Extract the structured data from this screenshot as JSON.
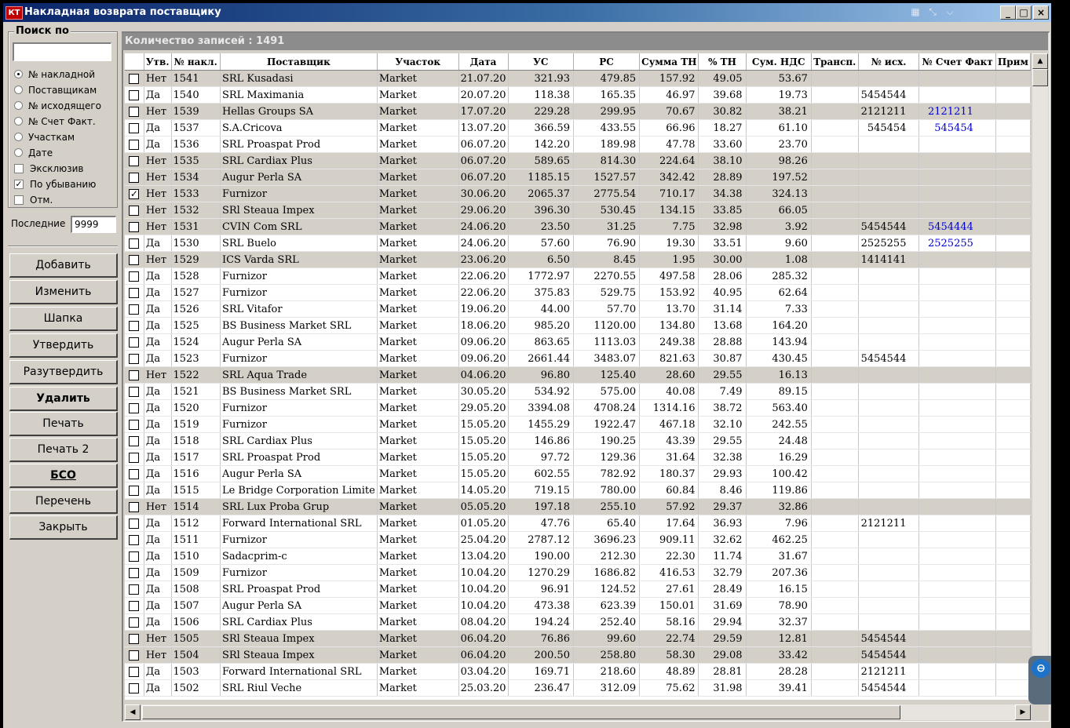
{
  "window": {
    "title": "Накладная возврата поставщику",
    "app_icon": "КТ",
    "buttons": {
      "minimize": "_",
      "maximize": "□",
      "close": "×"
    },
    "ext_icons": [
      "grid-icon",
      "pin-icon",
      "chevron-down-icon"
    ]
  },
  "search": {
    "group_label": "Поиск по",
    "input_value": "",
    "options": [
      {
        "label": "№ накладной",
        "kind": "radio",
        "checked": true
      },
      {
        "label": "Поставщикам",
        "kind": "radio",
        "checked": false
      },
      {
        "label": "№ исходящего",
        "kind": "radio",
        "checked": false
      },
      {
        "label": "№ Счет Факт.",
        "kind": "radio",
        "checked": false
      },
      {
        "label": "Участкам",
        "kind": "radio",
        "checked": false
      },
      {
        "label": "Дате",
        "kind": "radio",
        "checked": false
      },
      {
        "label": "Эксклюзив",
        "kind": "check",
        "checked": false
      },
      {
        "label": "По убыванию",
        "kind": "check",
        "checked": true
      },
      {
        "label": "Отм.",
        "kind": "check",
        "checked": false
      }
    ],
    "last_label": "Последние",
    "last_value": "9999"
  },
  "actions": [
    "Добавить",
    "Изменить",
    "Шапка",
    "Утвердить",
    "Разутвердить",
    "Удалить",
    "Печать",
    "Печать 2",
    "БСО",
    "Перечень",
    "Закрыть"
  ],
  "grid": {
    "count_text": "Количество записей : 1491",
    "columns": [
      "",
      "Утв.",
      "№ накл.",
      "Поставщик",
      "Участок",
      "Дата",
      "УС",
      "РС",
      "Сумма ТН",
      "% ТН",
      "Сум. НДС",
      "Трансп.",
      "№ исх.",
      "№ Счет Факт",
      "Прим"
    ],
    "rows": [
      [
        "",
        "Нет",
        "1541",
        "SRL Kusadasi",
        "Market",
        "21.07.20",
        "321.93",
        "479.85",
        "157.92",
        "49.05",
        "53.67",
        "",
        "",
        ""
      ],
      [
        "",
        "Да",
        "1540",
        "SRL Maximania",
        "Market",
        "20.07.20",
        "118.38",
        "165.35",
        "46.97",
        "39.68",
        "19.73",
        "",
        "5454544",
        ""
      ],
      [
        "",
        "Нет",
        "1539",
        "Hellas Groups SA",
        "Market",
        "17.07.20",
        "229.28",
        "299.95",
        "70.67",
        "30.82",
        "38.21",
        "",
        "2121211",
        "2121211"
      ],
      [
        "",
        "Да",
        "1537",
        "S.A.Cricova",
        "Market",
        "13.07.20",
        "366.59",
        "433.55",
        "66.96",
        "18.27",
        "61.10",
        "",
        "545454",
        "545454"
      ],
      [
        "",
        "Да",
        "1536",
        "SRL Proaspat Prod",
        "Market",
        "06.07.20",
        "142.20",
        "189.98",
        "47.78",
        "33.60",
        "23.70",
        "",
        "",
        ""
      ],
      [
        "",
        "Нет",
        "1535",
        "SRL Cardiax Plus",
        "Market",
        "06.07.20",
        "589.65",
        "814.30",
        "224.64",
        "38.10",
        "98.26",
        "",
        "",
        ""
      ],
      [
        "",
        "Нет",
        "1534",
        "Augur Perla SA",
        "Market",
        "06.07.20",
        "1185.15",
        "1527.57",
        "342.42",
        "28.89",
        "197.52",
        "",
        "",
        ""
      ],
      [
        "✓",
        "Нет",
        "1533",
        "Furnizor",
        "Market",
        "30.06.20",
        "2065.37",
        "2775.54",
        "710.17",
        "34.38",
        "324.13",
        "",
        "",
        ""
      ],
      [
        "",
        "Нет",
        "1532",
        "SRl Steaua Impex",
        "Market",
        "29.06.20",
        "396.30",
        "530.45",
        "134.15",
        "33.85",
        "66.05",
        "",
        "",
        ""
      ],
      [
        "",
        "Нет",
        "1531",
        "CVIN Com SRL",
        "Market",
        "24.06.20",
        "23.50",
        "31.25",
        "7.75",
        "32.98",
        "3.92",
        "",
        "5454544",
        "5454444"
      ],
      [
        "",
        "Да",
        "1530",
        "SRL Buelo",
        "Market",
        "24.06.20",
        "57.60",
        "76.90",
        "19.30",
        "33.51",
        "9.60",
        "",
        "2525255",
        "2525255"
      ],
      [
        "",
        "Нет",
        "1529",
        "ICS Varda SRL",
        "Market",
        "23.06.20",
        "6.50",
        "8.45",
        "1.95",
        "30.00",
        "1.08",
        "",
        "1414141",
        ""
      ],
      [
        "",
        "Да",
        "1528",
        "Furnizor",
        "Market",
        "22.06.20",
        "1772.97",
        "2270.55",
        "497.58",
        "28.06",
        "285.32",
        "",
        "",
        ""
      ],
      [
        "",
        "Да",
        "1527",
        "Furnizor",
        "Market",
        "22.06.20",
        "375.83",
        "529.75",
        "153.92",
        "40.95",
        "62.64",
        "",
        "",
        ""
      ],
      [
        "",
        "Да",
        "1526",
        "SRL Vitafor",
        "Market",
        "19.06.20",
        "44.00",
        "57.70",
        "13.70",
        "31.14",
        "7.33",
        "",
        "",
        ""
      ],
      [
        "",
        "Да",
        "1525",
        "BS Business Market SRL",
        "Market",
        "18.06.20",
        "985.20",
        "1120.00",
        "134.80",
        "13.68",
        "164.20",
        "",
        "",
        ""
      ],
      [
        "",
        "Да",
        "1524",
        "Augur Perla SA",
        "Market",
        "09.06.20",
        "863.65",
        "1113.03",
        "249.38",
        "28.88",
        "143.94",
        "",
        "",
        ""
      ],
      [
        "",
        "Да",
        "1523",
        "Furnizor",
        "Market",
        "09.06.20",
        "2661.44",
        "3483.07",
        "821.63",
        "30.87",
        "430.45",
        "",
        "5454544",
        ""
      ],
      [
        "",
        "Нет",
        "1522",
        "SRL Aqua Trade",
        "Market",
        "04.06.20",
        "96.80",
        "125.40",
        "28.60",
        "29.55",
        "16.13",
        "",
        "",
        ""
      ],
      [
        "",
        "Да",
        "1521",
        "BS Business Market SRL",
        "Market",
        "30.05.20",
        "534.92",
        "575.00",
        "40.08",
        "7.49",
        "89.15",
        "",
        "",
        ""
      ],
      [
        "",
        "Да",
        "1520",
        "Furnizor",
        "Market",
        "29.05.20",
        "3394.08",
        "4708.24",
        "1314.16",
        "38.72",
        "563.40",
        "",
        "",
        ""
      ],
      [
        "",
        "Да",
        "1519",
        "Furnizor",
        "Market",
        "15.05.20",
        "1455.29",
        "1922.47",
        "467.18",
        "32.10",
        "242.55",
        "",
        "",
        ""
      ],
      [
        "",
        "Да",
        "1518",
        "SRL Cardiax Plus",
        "Market",
        "15.05.20",
        "146.86",
        "190.25",
        "43.39",
        "29.55",
        "24.48",
        "",
        "",
        ""
      ],
      [
        "",
        "Да",
        "1517",
        "SRL Proaspat Prod",
        "Market",
        "15.05.20",
        "97.72",
        "129.36",
        "31.64",
        "32.38",
        "16.29",
        "",
        "",
        ""
      ],
      [
        "",
        "Да",
        "1516",
        "Augur Perla SA",
        "Market",
        "15.05.20",
        "602.55",
        "782.92",
        "180.37",
        "29.93",
        "100.42",
        "",
        "",
        ""
      ],
      [
        "",
        "Да",
        "1515",
        "Le Bridge Corporation Limite",
        "Market",
        "14.05.20",
        "719.15",
        "780.00",
        "60.84",
        "8.46",
        "119.86",
        "",
        "",
        ""
      ],
      [
        "",
        "Нет",
        "1514",
        "SRL Lux Proba Grup",
        "Market",
        "05.05.20",
        "197.18",
        "255.10",
        "57.92",
        "29.37",
        "32.86",
        "",
        "",
        ""
      ],
      [
        "",
        "Да",
        "1512",
        "Forward International SRL",
        "Market",
        "01.05.20",
        "47.76",
        "65.40",
        "17.64",
        "36.93",
        "7.96",
        "",
        "2121211",
        ""
      ],
      [
        "",
        "Да",
        "1511",
        "Furnizor",
        "Market",
        "25.04.20",
        "2787.12",
        "3696.23",
        "909.11",
        "32.62",
        "462.25",
        "",
        "",
        ""
      ],
      [
        "",
        "Да",
        "1510",
        "Sadacprim-c",
        "Market",
        "13.04.20",
        "190.00",
        "212.30",
        "22.30",
        "11.74",
        "31.67",
        "",
        "",
        ""
      ],
      [
        "",
        "Да",
        "1509",
        "Furnizor",
        "Market",
        "10.04.20",
        "1270.29",
        "1686.82",
        "416.53",
        "32.79",
        "207.36",
        "",
        "",
        ""
      ],
      [
        "",
        "Да",
        "1508",
        "SRL Proaspat Prod",
        "Market",
        "10.04.20",
        "96.91",
        "124.52",
        "27.61",
        "28.49",
        "16.15",
        "",
        "",
        ""
      ],
      [
        "",
        "Да",
        "1507",
        "Augur Perla SA",
        "Market",
        "10.04.20",
        "473.38",
        "623.39",
        "150.01",
        "31.69",
        "78.90",
        "",
        "",
        ""
      ],
      [
        "",
        "Да",
        "1506",
        "SRL Cardiax Plus",
        "Market",
        "08.04.20",
        "194.24",
        "252.40",
        "58.16",
        "29.94",
        "32.37",
        "",
        "",
        ""
      ],
      [
        "",
        "Нет",
        "1505",
        "SRl Steaua Impex",
        "Market",
        "06.04.20",
        "76.86",
        "99.60",
        "22.74",
        "29.59",
        "12.81",
        "",
        "5454544",
        ""
      ],
      [
        "",
        "Нет",
        "1504",
        "SRl Steaua Impex",
        "Market",
        "06.04.20",
        "200.50",
        "258.80",
        "58.30",
        "29.08",
        "33.42",
        "",
        "5454544",
        ""
      ],
      [
        "",
        "Да",
        "1503",
        "Forward International SRL",
        "Market",
        "03.04.20",
        "169.71",
        "218.60",
        "48.89",
        "28.81",
        "28.28",
        "",
        "2121211",
        ""
      ],
      [
        "",
        "Да",
        "1502",
        "SRL Riul Veche",
        "Market",
        "25.03.20",
        "236.47",
        "312.09",
        "75.62",
        "31.98",
        "39.41",
        "",
        "5454544",
        ""
      ]
    ]
  },
  "colors": {
    "title_start": "#0a246a",
    "title_end": "#a6caf0",
    "row_gray": "#d4d0c8",
    "link": "#0000cc"
  }
}
